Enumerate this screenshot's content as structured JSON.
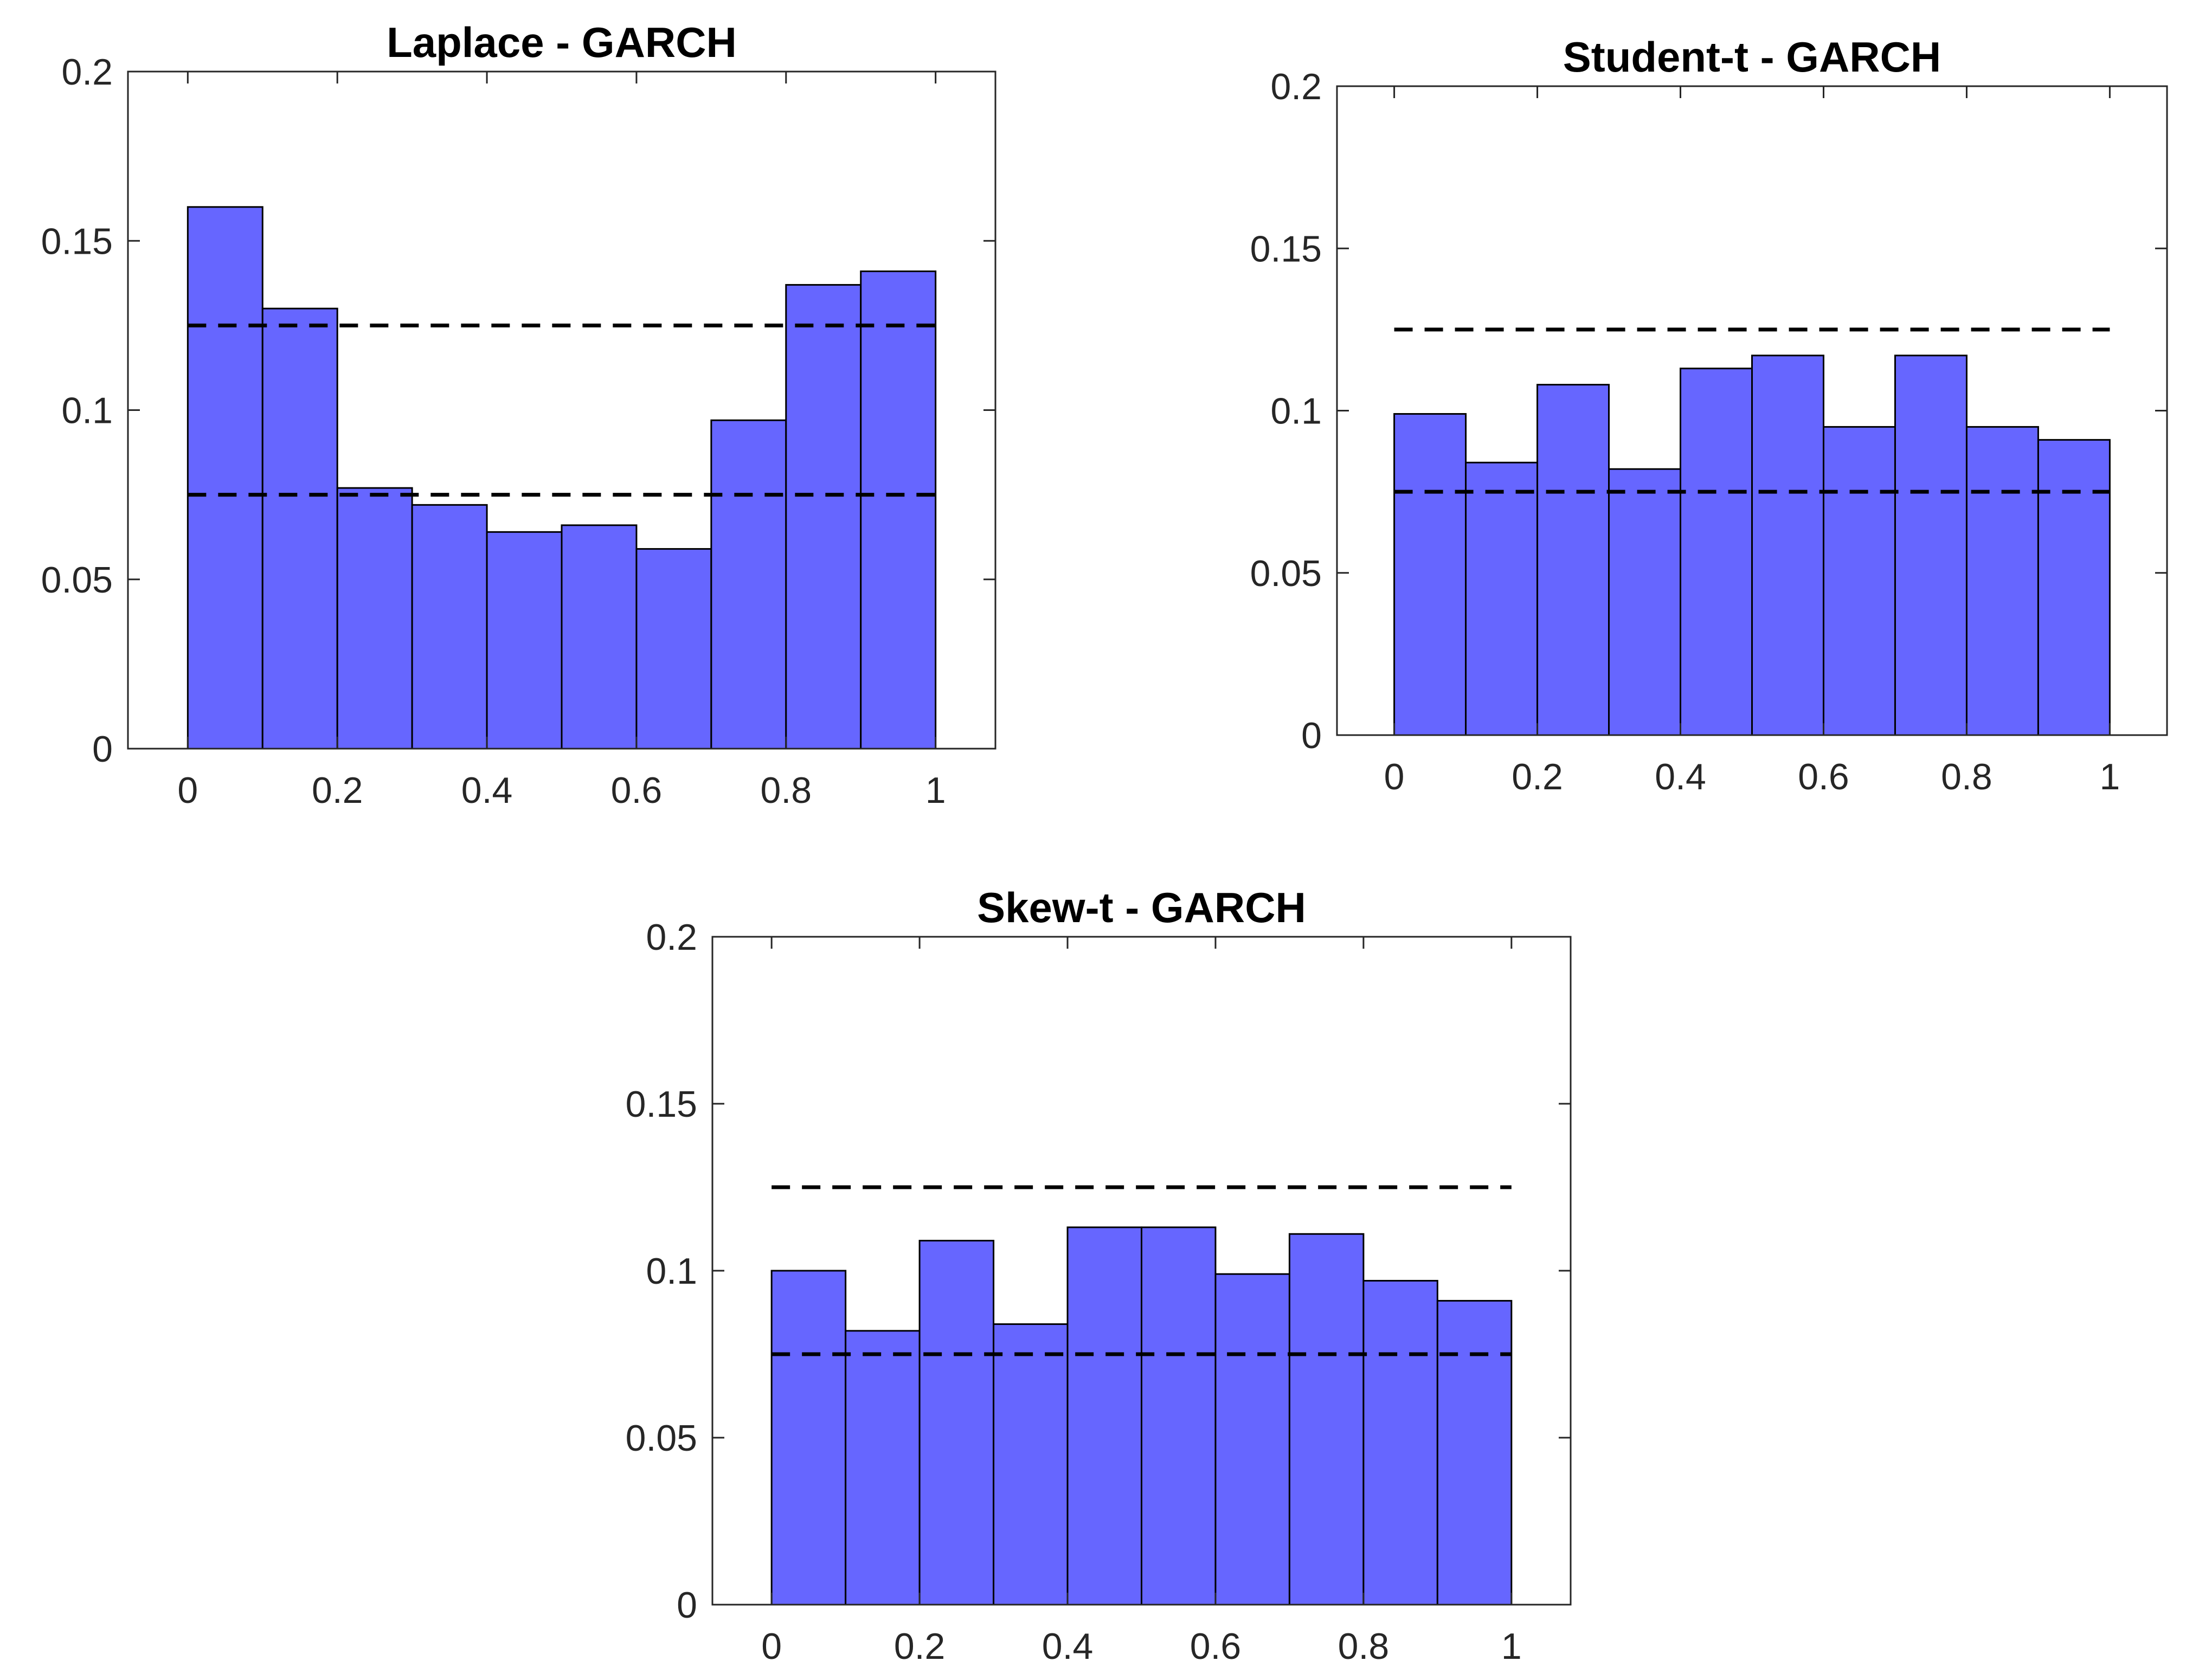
{
  "figure": {
    "bar_color": "#6666FF",
    "bar_edge_color": "#000000",
    "line_color": "#000000",
    "axis_color": "#262626"
  },
  "chart_data": [
    {
      "type": "bar",
      "title": "Laplace - GARCH",
      "xlabel": "",
      "ylabel": "",
      "bin_edges": [
        0,
        0.1,
        0.2,
        0.3,
        0.4,
        0.5,
        0.6,
        0.7,
        0.8,
        0.9,
        1.0
      ],
      "values": [
        0.16,
        0.13,
        0.077,
        0.072,
        0.064,
        0.066,
        0.059,
        0.097,
        0.137,
        0.141
      ],
      "xlim": [
        -0.08,
        1.08
      ],
      "ylim": [
        0,
        0.2
      ],
      "xticks": [
        0,
        0.2,
        0.4,
        0.6,
        0.8,
        1
      ],
      "xtick_labels": [
        "0",
        "0.2",
        "0.4",
        "0.6",
        "0.8",
        "1"
      ],
      "yticks": [
        0,
        0.05,
        0.1,
        0.15,
        0.2
      ],
      "ytick_labels": [
        "0",
        "0.05",
        "0.1",
        "0.15",
        "0.2"
      ],
      "reference_lines": [
        {
          "style": "dashed",
          "y": 0.125
        },
        {
          "style": "dashed",
          "y": 0.075
        }
      ]
    },
    {
      "type": "bar",
      "title": "Student-t - GARCH",
      "xlabel": "",
      "ylabel": "",
      "bin_edges": [
        0,
        0.1,
        0.2,
        0.3,
        0.4,
        0.5,
        0.6,
        0.7,
        0.8,
        0.9,
        1.0
      ],
      "values": [
        0.099,
        0.084,
        0.108,
        0.082,
        0.113,
        0.117,
        0.095,
        0.117,
        0.095,
        0.091
      ],
      "xlim": [
        -0.08,
        1.08
      ],
      "ylim": [
        0,
        0.2
      ],
      "xticks": [
        0,
        0.2,
        0.4,
        0.6,
        0.8,
        1
      ],
      "xtick_labels": [
        "0",
        "0.2",
        "0.4",
        "0.6",
        "0.8",
        "1"
      ],
      "yticks": [
        0,
        0.05,
        0.1,
        0.15,
        0.2
      ],
      "ytick_labels": [
        "0",
        "0.05",
        "0.1",
        "0.15",
        "0.2"
      ],
      "reference_lines": [
        {
          "style": "dashed",
          "y": 0.125
        },
        {
          "style": "dashed",
          "y": 0.075
        }
      ]
    },
    {
      "type": "bar",
      "title": "Skew-t - GARCH",
      "xlabel": "",
      "ylabel": "",
      "bin_edges": [
        0,
        0.1,
        0.2,
        0.3,
        0.4,
        0.5,
        0.6,
        0.7,
        0.8,
        0.9,
        1.0
      ],
      "values": [
        0.1,
        0.082,
        0.109,
        0.084,
        0.113,
        0.113,
        0.099,
        0.111,
        0.097,
        0.091
      ],
      "xlim": [
        -0.08,
        1.08
      ],
      "ylim": [
        0,
        0.2
      ],
      "xticks": [
        0,
        0.2,
        0.4,
        0.6,
        0.8,
        1
      ],
      "xtick_labels": [
        "0",
        "0.2",
        "0.4",
        "0.6",
        "0.8",
        "1"
      ],
      "yticks": [
        0,
        0.05,
        0.1,
        0.15,
        0.2
      ],
      "ytick_labels": [
        "0",
        "0.05",
        "0.1",
        "0.15",
        "0.2"
      ],
      "reference_lines": [
        {
          "style": "dashed",
          "y": 0.125
        },
        {
          "style": "dashed",
          "y": 0.075
        }
      ]
    }
  ]
}
